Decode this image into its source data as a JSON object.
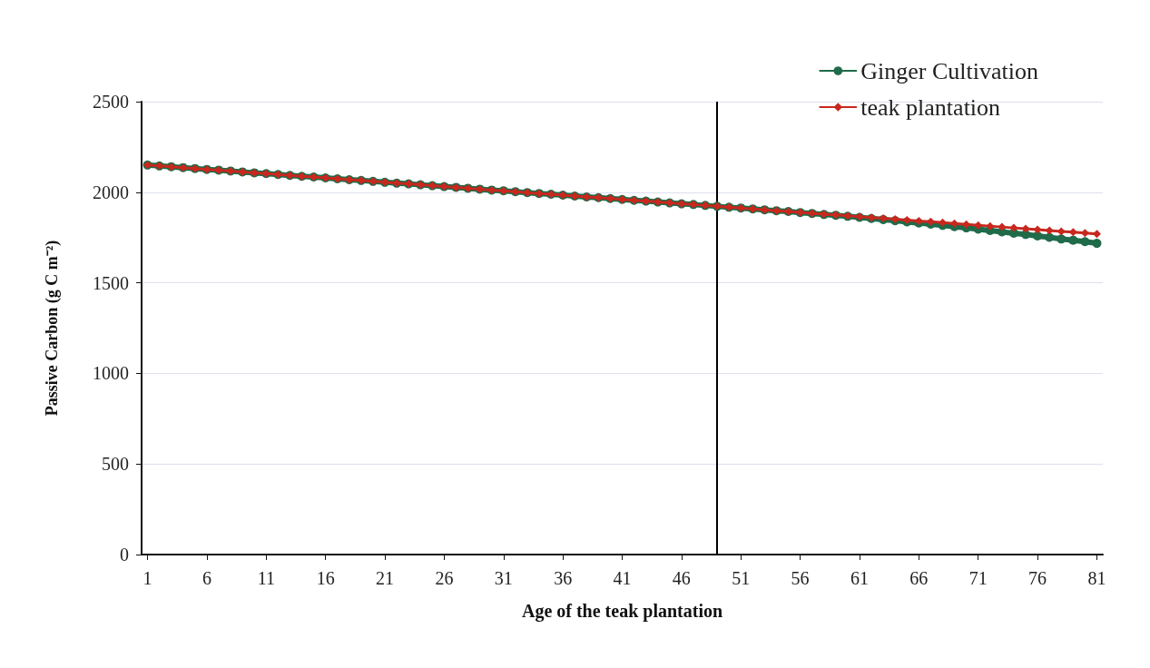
{
  "chart_data": {
    "type": "line",
    "xlabel": "Age of the teak plantation",
    "ylabel": "Passive Carbon (g C m⁻²)",
    "x": [
      1,
      2,
      3,
      4,
      5,
      6,
      7,
      8,
      9,
      10,
      11,
      12,
      13,
      14,
      15,
      16,
      17,
      18,
      19,
      20,
      21,
      22,
      23,
      24,
      25,
      26,
      27,
      28,
      29,
      30,
      31,
      32,
      33,
      34,
      35,
      36,
      37,
      38,
      39,
      40,
      41,
      42,
      43,
      44,
      45,
      46,
      47,
      48,
      49,
      50,
      51,
      52,
      53,
      54,
      55,
      56,
      57,
      58,
      59,
      60,
      61,
      62,
      63,
      64,
      65,
      66,
      67,
      68,
      69,
      70,
      71,
      72,
      73,
      74,
      75,
      76,
      77,
      78,
      79,
      80,
      81
    ],
    "xlim": [
      0.5,
      81.5
    ],
    "xticks": [
      1,
      6,
      11,
      16,
      21,
      26,
      31,
      36,
      41,
      46,
      51,
      56,
      61,
      66,
      71,
      76,
      81
    ],
    "ylim": [
      0,
      2500
    ],
    "yticks": [
      0,
      500,
      1000,
      1500,
      2000,
      2500
    ],
    "grid": "y",
    "legend": "top right",
    "line_style": "solid",
    "ref_lines": [
      {
        "axis": "x",
        "value": 49,
        "color": "#000000"
      }
    ],
    "series": [
      {
        "name": "Ginger Cultivation",
        "color": "#1f6b4a",
        "marker": "circle",
        "values": [
          2150,
          2145,
          2141,
          2136,
          2131,
          2126,
          2122,
          2117,
          2112,
          2107,
          2103,
          2098,
          2093,
          2088,
          2084,
          2079,
          2074,
          2069,
          2065,
          2060,
          2055,
          2050,
          2046,
          2041,
          2036,
          2031,
          2027,
          2022,
          2017,
          2012,
          2008,
          2003,
          1998,
          1993,
          1989,
          1984,
          1979,
          1974,
          1970,
          1965,
          1960,
          1955,
          1951,
          1946,
          1941,
          1936,
          1932,
          1927,
          1922,
          1917,
          1913,
          1908,
          1903,
          1898,
          1894,
          1888,
          1883,
          1877,
          1873,
          1867,
          1861,
          1855,
          1849,
          1843,
          1836,
          1830,
          1824,
          1817,
          1810,
          1803,
          1796,
          1789,
          1781,
          1774,
          1767,
          1759,
          1751,
          1742,
          1735,
          1727,
          1718
        ]
      },
      {
        "name": "teak plantation",
        "color": "#c8281e",
        "marker": "diamond",
        "values": [
          2150,
          2145,
          2141,
          2136,
          2131,
          2126,
          2122,
          2117,
          2112,
          2107,
          2103,
          2098,
          2093,
          2088,
          2084,
          2079,
          2074,
          2069,
          2065,
          2060,
          2055,
          2050,
          2046,
          2041,
          2036,
          2031,
          2027,
          2022,
          2017,
          2012,
          2008,
          2003,
          1998,
          1993,
          1989,
          1984,
          1979,
          1974,
          1970,
          1965,
          1960,
          1955,
          1951,
          1946,
          1941,
          1936,
          1932,
          1927,
          1922,
          1917,
          1913,
          1908,
          1903,
          1898,
          1894,
          1889,
          1884,
          1879,
          1875,
          1870,
          1865,
          1860,
          1856,
          1851,
          1846,
          1841,
          1837,
          1832,
          1827,
          1822,
          1818,
          1813,
          1808,
          1803,
          1799,
          1794,
          1789,
          1784,
          1780,
          1775,
          1770
        ]
      }
    ]
  }
}
